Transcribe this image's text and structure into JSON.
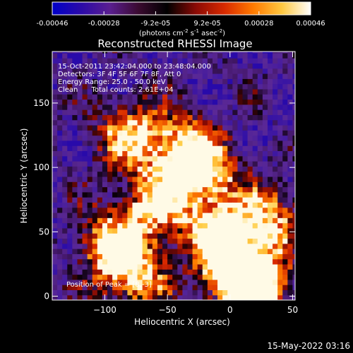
{
  "chart_data": {
    "type": "heatmap",
    "title": "Reconstructed RHESSI Image",
    "xlabel": "Heliocentric X (arcsec)",
    "ylabel": "Heliocentric Y (arcsec)",
    "xlim": [
      -142,
      52
    ],
    "ylim": [
      -3,
      190
    ],
    "x_ticks": [
      -100,
      -50,
      0,
      50
    ],
    "y_ticks": [
      0,
      50,
      100,
      150
    ],
    "grid": false,
    "colorbar": {
      "ticks": [
        "-0.00046",
        "-0.00028",
        "-9.2e-05",
        "9.2e-05",
        "0.00028",
        "0.00046"
      ],
      "range": [
        -0.00046,
        0.00046
      ],
      "unit": "(photons cm",
      "unit_sup1": "-2",
      "unit_mid": " s",
      "unit_sup2": "-1",
      "unit_end": " asec",
      "unit_sup3": "-2",
      "unit_close": ")",
      "colors": [
        "#0000c8",
        "#2b0aa8",
        "#5a1e90",
        "#3a0a30",
        "#000000",
        "#8a0a05",
        "#d82a00",
        "#ff7a00",
        "#ffc840",
        "#ffffff"
      ]
    },
    "annotations": [
      "15-Oct-2011 23:42:04.000 to 23:48:04.000",
      "Detectors: 3F 4F 5F 6F 7F 8F, Att 0",
      "Energy Range: 25.0 - 50.0 keV",
      "Clean      Total counts: 2.61E+04"
    ],
    "peak_label": "Position of Peak = [8,-3]",
    "bright_regions": [
      {
        "x": -95,
        "y": 40,
        "level": 0.6
      },
      {
        "x": -80,
        "y": 125,
        "level": 0.55
      },
      {
        "x": -60,
        "y": 70,
        "level": 0.6
      },
      {
        "x": -20,
        "y": 95,
        "level": 0.65
      },
      {
        "x": -40,
        "y": 115,
        "level": 0.55
      },
      {
        "x": -10,
        "y": 50,
        "level": 0.6
      },
      {
        "x": 5,
        "y": 20,
        "level": 0.85
      },
      {
        "x": 20,
        "y": 5,
        "level": 0.95
      },
      {
        "x": -75,
        "y": 15,
        "level": 0.5
      },
      {
        "x": 30,
        "y": 60,
        "level": 0.45
      }
    ]
  },
  "footer_timestamp": "15-May-2022 03:16"
}
